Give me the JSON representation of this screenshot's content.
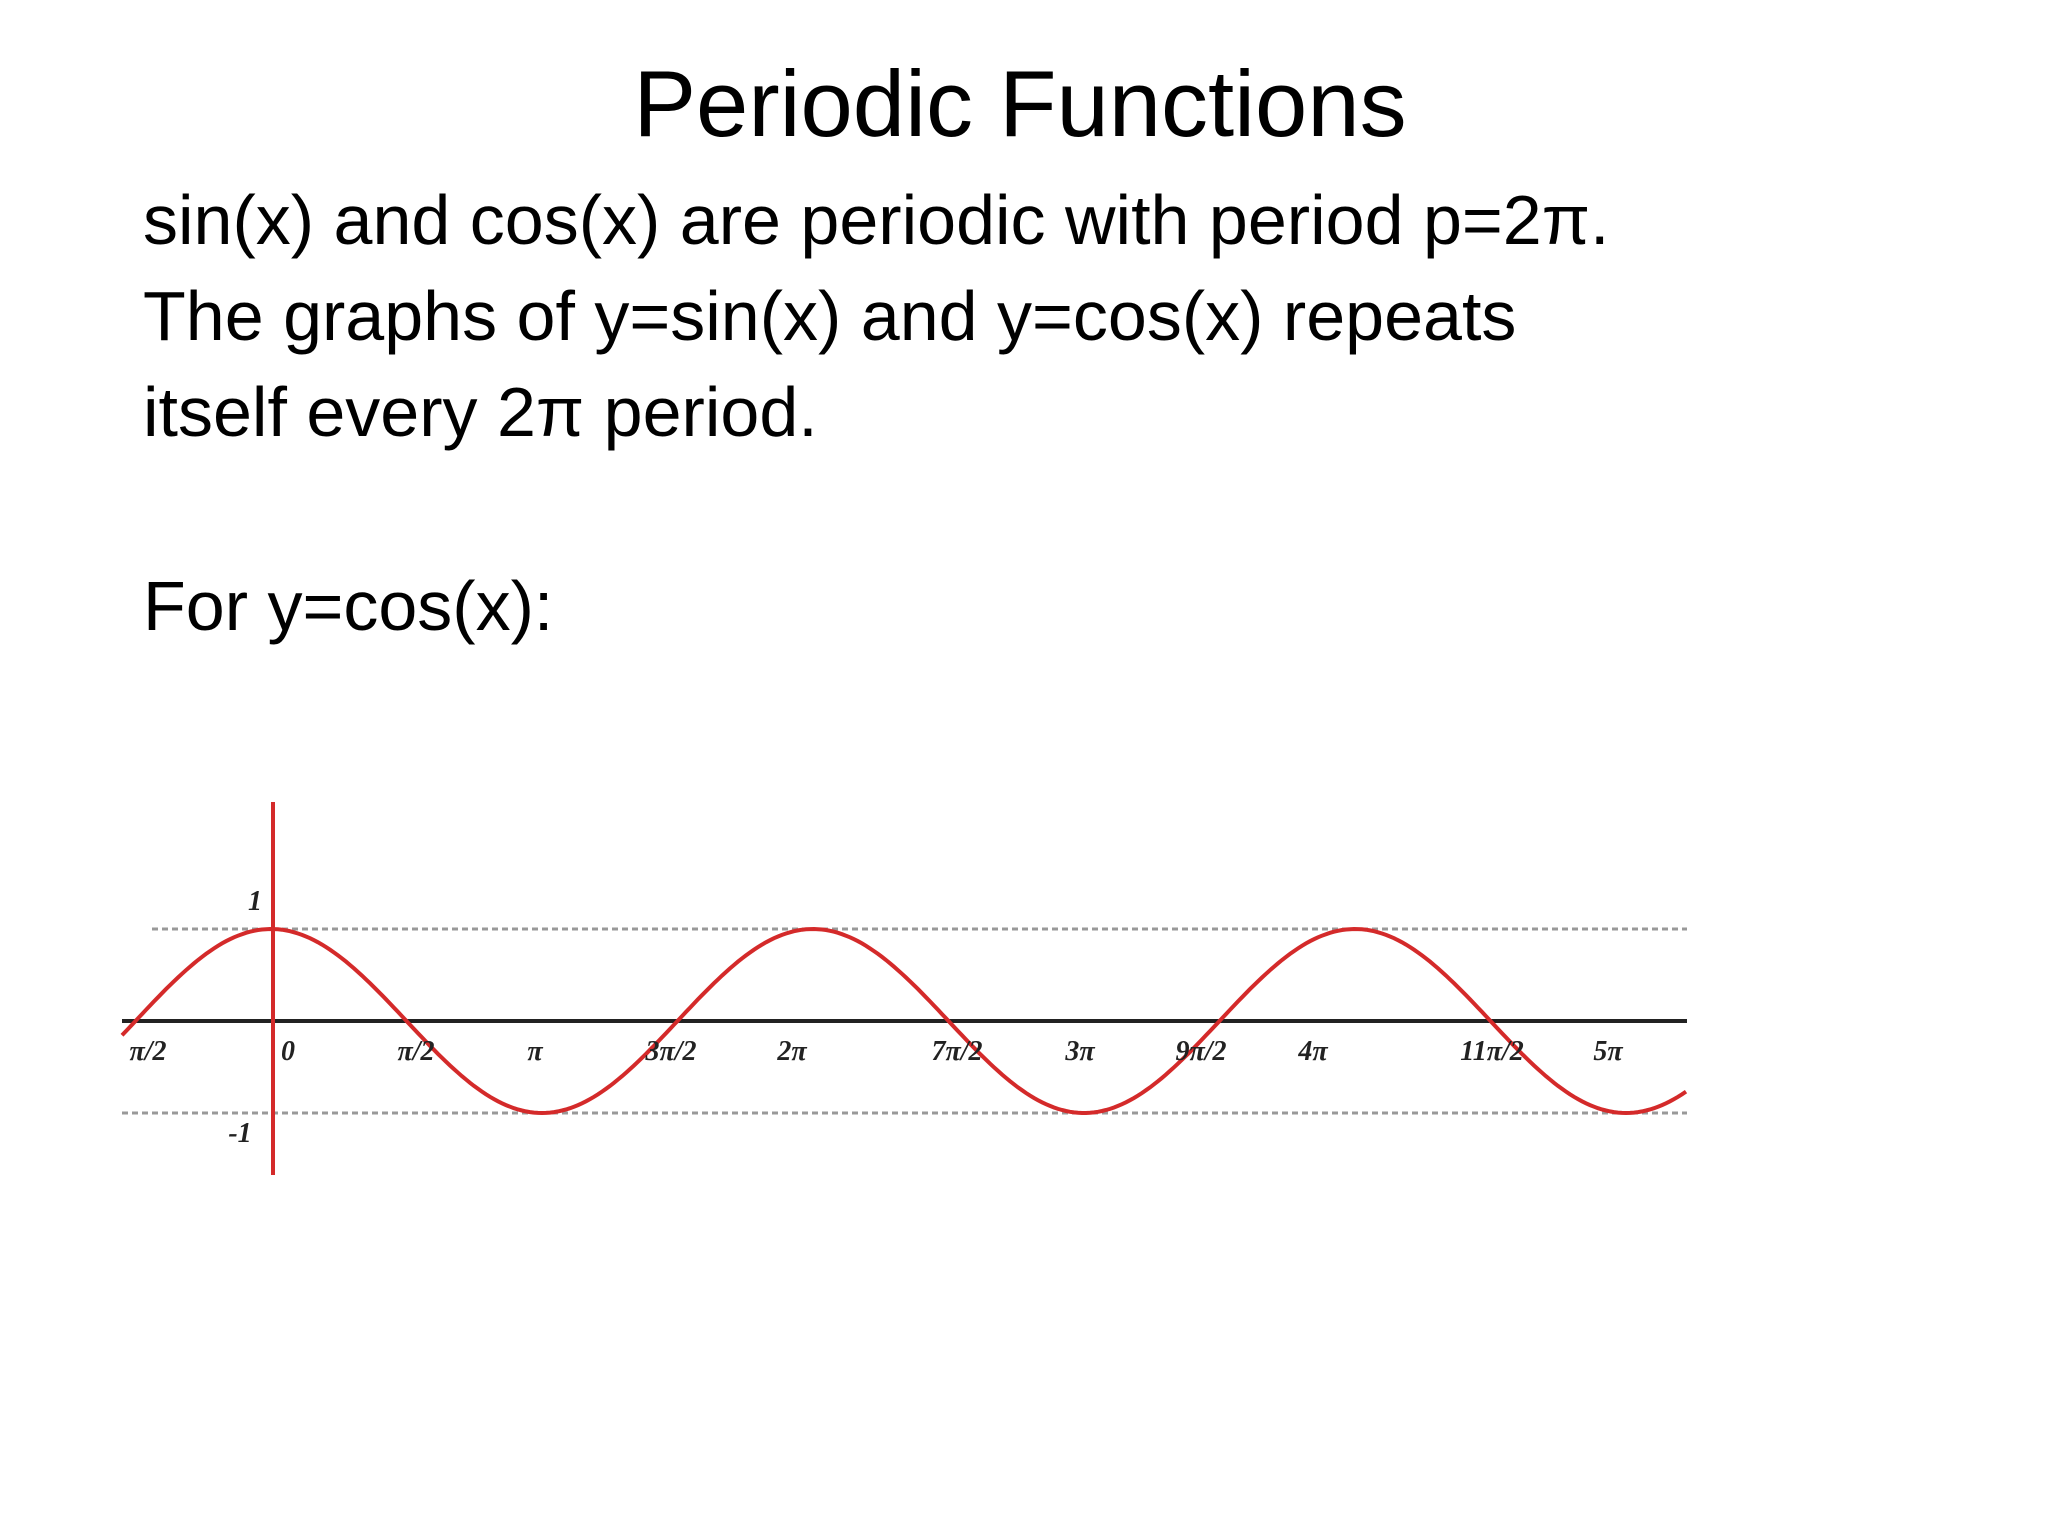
{
  "title": "Periodic Functions",
  "body": [
    "sin(x) and cos(x) are periodic with period p=2π.",
    "The graphs of y=sin(x) and y=cos(x) repeats",
    "itself every 2π period.",
    "For y=cos(x):"
  ],
  "figure": {
    "y_labels": [
      "1",
      "-1"
    ],
    "x_labels": [
      "π/2",
      "0",
      "π/2",
      "π",
      "3π/2",
      "2π",
      "7π/2",
      "3π",
      "9π/2",
      "4π",
      "11π/2",
      "5π"
    ]
  }
}
